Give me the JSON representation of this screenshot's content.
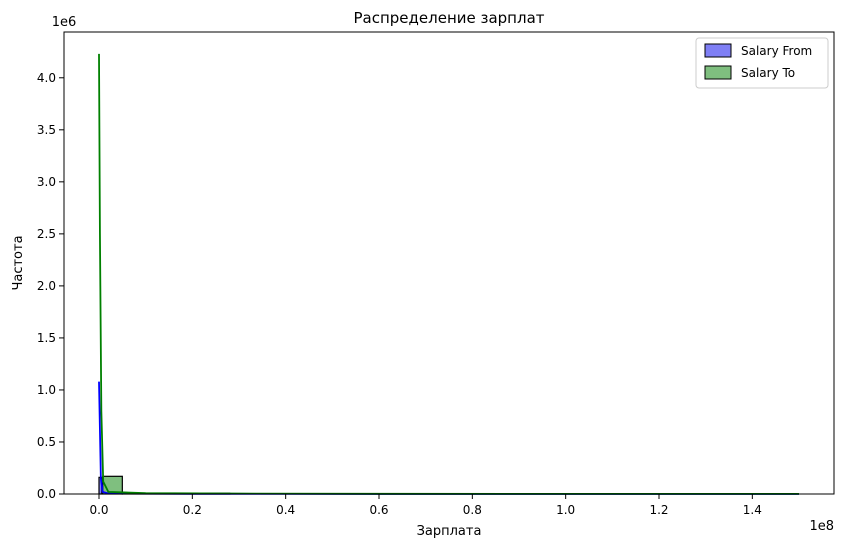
{
  "chart_data": {
    "type": "bar",
    "title": "Распределение зарплат",
    "xlabel": "Зарплата",
    "ylabel": "Частота",
    "x_offset_label": "1e8",
    "y_offset_label": "1e6",
    "xlim": [
      -0.075,
      1.575
    ],
    "ylim": [
      0,
      4.44
    ],
    "x_ticks": [
      0.0,
      0.2,
      0.4,
      0.6,
      0.8,
      1.0,
      1.2,
      1.4
    ],
    "x_tick_labels": [
      "0.0",
      "0.2",
      "0.4",
      "0.6",
      "0.8",
      "1.0",
      "1.2",
      "1.4"
    ],
    "y_ticks": [
      0.0,
      0.5,
      1.0,
      1.5,
      2.0,
      2.5,
      3.0,
      3.5,
      4.0
    ],
    "y_tick_labels": [
      "0.0",
      "0.5",
      "1.0",
      "1.5",
      "2.0",
      "2.5",
      "3.0",
      "3.5",
      "4.0"
    ],
    "grid": false,
    "legend_position": "top-right",
    "series": [
      {
        "name": "Salary From",
        "fill": "#7f7ff5",
        "line": "#0000ff",
        "bins": [
          {
            "x0": 0.0,
            "x1": 0.006,
            "count": 0.16
          }
        ],
        "kde": [
          [
            0.0,
            1.08
          ],
          [
            0.004,
            0.15
          ],
          [
            0.008,
            0.02
          ],
          [
            0.02,
            0.005
          ],
          [
            0.2,
            0.002
          ],
          [
            0.4,
            0.001
          ],
          [
            1.5,
            0.0
          ]
        ]
      },
      {
        "name": "Salary To",
        "fill": "#7fbf7f",
        "line": "#008000",
        "bins": [
          {
            "x0": 0.008,
            "x1": 0.05,
            "count": 0.17
          },
          {
            "x0": 0.05,
            "x1": 0.28,
            "count": 0.003
          }
        ],
        "kde": [
          [
            0.0,
            4.23
          ],
          [
            0.002,
            2.5
          ],
          [
            0.005,
            0.8
          ],
          [
            0.009,
            0.12
          ],
          [
            0.02,
            0.02
          ],
          [
            0.1,
            0.008
          ],
          [
            0.28,
            0.004
          ],
          [
            0.6,
            0.002
          ],
          [
            1.0,
            0.001
          ],
          [
            1.5,
            0.001
          ]
        ]
      }
    ]
  }
}
